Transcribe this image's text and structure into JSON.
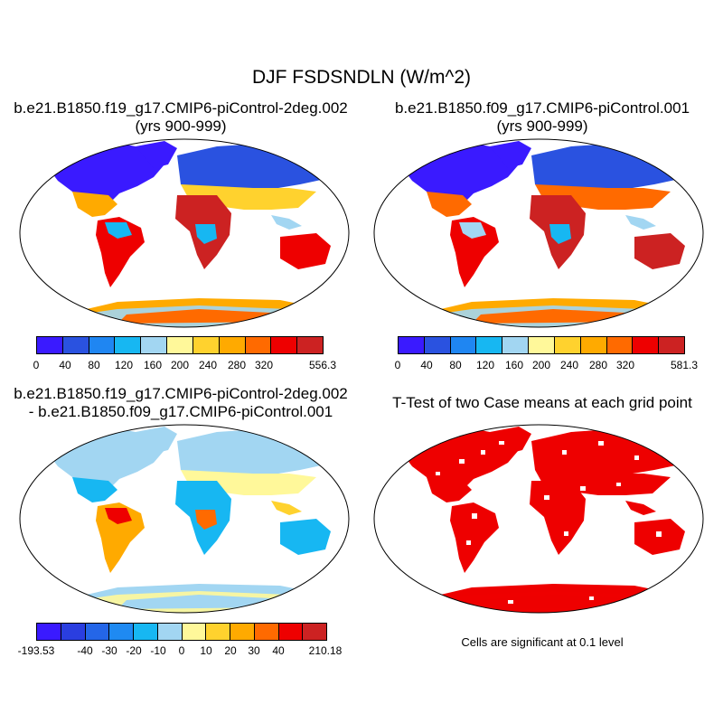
{
  "title": "DJF FSDSNDLN (W/m^2)",
  "panels": [
    {
      "title_line1": "b.e21.B1850.f19_g17.CMIP6-piControl-2deg.002",
      "title_line2": "(yrs 900-999)"
    },
    {
      "title_line1": "b.e21.B1850.f09_g17.CMIP6-piControl.001",
      "title_line2": "(yrs 900-999)"
    },
    {
      "title_line1": "b.e21.B1850.f19_g17.CMIP6-piControl-2deg.002",
      "title_line2": "- b.e21.B1850.f09_g17.CMIP6-piControl.001"
    },
    {
      "title_line1": "T-Test of two Case means at each grid point"
    }
  ],
  "colorbars": [
    {
      "colors": [
        "#3a1aff",
        "#2a52e0",
        "#1f86f2",
        "#17b7f2",
        "#a2d6f2",
        "#fff89a",
        "#ffd22e",
        "#ffaa00",
        "#ff6a00",
        "#ee0000",
        "#cc2222"
      ],
      "labels": [
        "0",
        "40",
        "80",
        "120",
        "160",
        "200",
        "240",
        "280",
        "320",
        "556.3"
      ]
    },
    {
      "colors": [
        "#3a1aff",
        "#2a52e0",
        "#1f86f2",
        "#17b7f2",
        "#a2d6f2",
        "#fff89a",
        "#ffd22e",
        "#ffaa00",
        "#ff6a00",
        "#ee0000",
        "#cc2222"
      ],
      "labels": [
        "0",
        "40",
        "80",
        "120",
        "160",
        "200",
        "240",
        "280",
        "320",
        "581.3"
      ]
    },
    {
      "colors": [
        "#3a1aff",
        "#2a3ee0",
        "#2466e8",
        "#1f8af2",
        "#17b7f2",
        "#a2d6f2",
        "#fff89a",
        "#ffd22e",
        "#ffaa00",
        "#ff6a00",
        "#ee0000",
        "#cc2222"
      ],
      "labels": [
        "-193.53",
        "-40",
        "-30",
        "-20",
        "-10",
        "0",
        "10",
        "20",
        "30",
        "40",
        "210.18"
      ]
    }
  ],
  "significance_note": "Cells are significant at 0.1 level",
  "colors": {
    "significant": "#ee0000"
  }
}
